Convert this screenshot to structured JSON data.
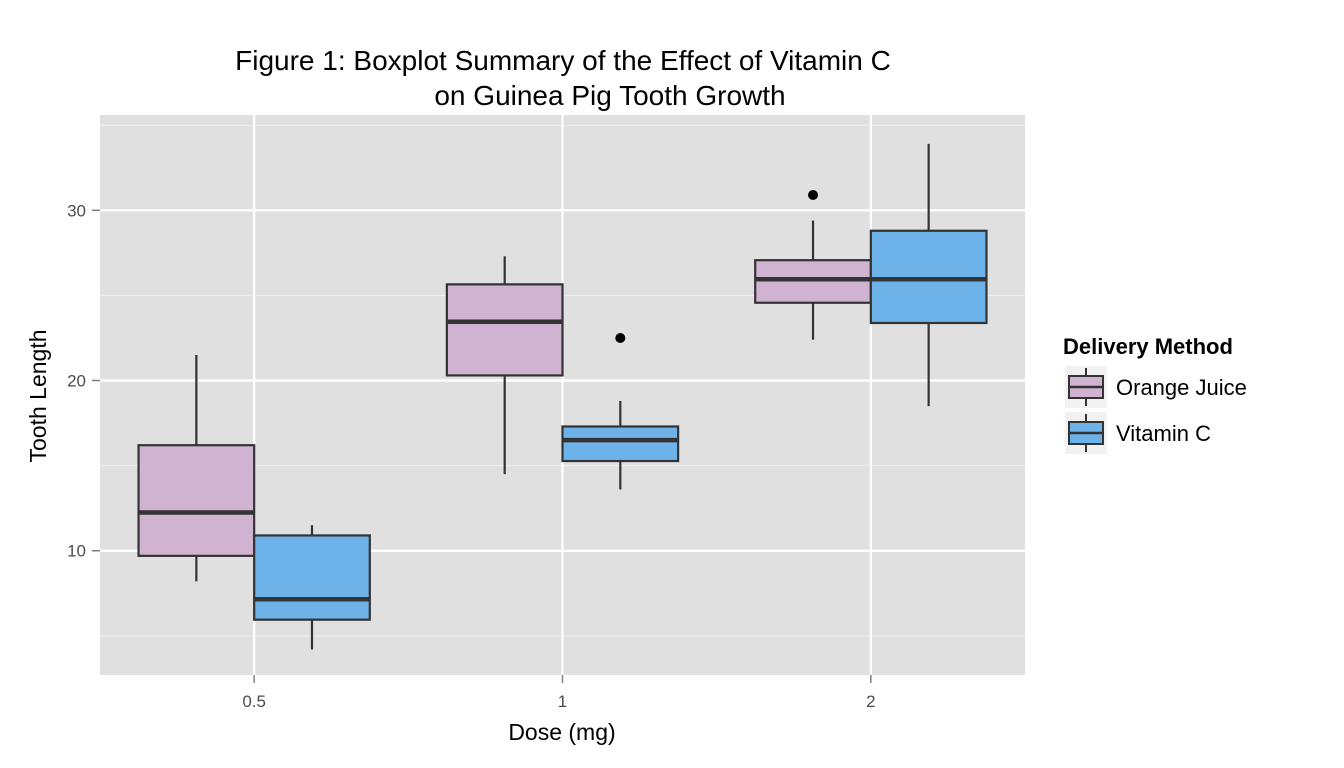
{
  "chart_data": {
    "type": "boxplot",
    "title": [
      "Figure 1: Boxplot Summary of the Effect of Vitamin C",
      "on Guinea Pig Tooth Growth"
    ],
    "xlabel": "Dose (mg)",
    "ylabel": "Tooth Length",
    "categories": [
      "0.5",
      "1",
      "2"
    ],
    "ylim": [
      2.7,
      35.6
    ],
    "yticks": [
      10,
      20,
      30
    ],
    "grid": true,
    "legend": {
      "title": "Delivery Method",
      "position": "right"
    },
    "series": [
      {
        "name": "Orange Juice",
        "color": "#cfb3d1",
        "boxes": [
          {
            "category": "0.5",
            "whisker_low": 8.2,
            "q1": 9.7,
            "median": 12.25,
            "q3": 16.2,
            "whisker_high": 21.5,
            "outliers": []
          },
          {
            "category": "1",
            "whisker_low": 14.5,
            "q1": 20.3,
            "median": 23.45,
            "q3": 25.65,
            "whisker_high": 27.3,
            "outliers": []
          },
          {
            "category": "2",
            "whisker_low": 22.4,
            "q1": 24.57,
            "median": 25.95,
            "q3": 27.07,
            "whisker_high": 29.4,
            "outliers": [
              30.9
            ]
          }
        ]
      },
      {
        "name": "Vitamin C",
        "color": "#6db3ea",
        "boxes": [
          {
            "category": "0.5",
            "whisker_low": 4.2,
            "q1": 5.95,
            "median": 7.15,
            "q3": 10.9,
            "whisker_high": 11.5,
            "outliers": []
          },
          {
            "category": "1",
            "whisker_low": 13.6,
            "q1": 15.27,
            "median": 16.5,
            "q3": 17.3,
            "whisker_high": 18.8,
            "outliers": [
              22.5
            ]
          },
          {
            "category": "2",
            "whisker_low": 18.5,
            "q1": 23.38,
            "median": 25.95,
            "q3": 28.8,
            "whisker_high": 33.9,
            "outliers": []
          }
        ]
      }
    ]
  }
}
